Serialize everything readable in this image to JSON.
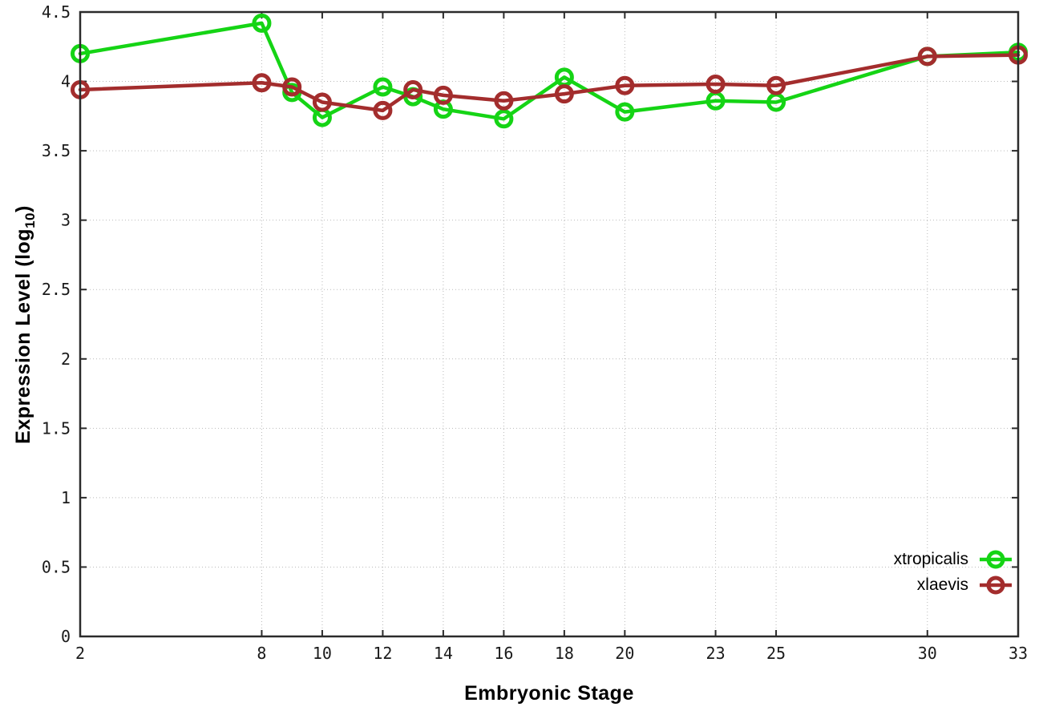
{
  "chart_data": {
    "type": "line",
    "title": "",
    "xlabel": "Embryonic Stage",
    "ylabel": "Expression Level (log10)",
    "ylabel_parts": {
      "base": "Expression Level (log",
      "sub": "10",
      "close": ")"
    },
    "xlim": [
      2,
      33
    ],
    "ylim": [
      0,
      4.5
    ],
    "grid": true,
    "legend_position": "inside-bottom-right",
    "x": [
      2,
      8,
      9,
      10,
      12,
      13,
      14,
      16,
      18,
      20,
      23,
      25,
      30,
      33
    ],
    "xticks": {
      "values": [
        2,
        8,
        10,
        12,
        14,
        16,
        18,
        20,
        23,
        25,
        30,
        33
      ],
      "labels": [
        "2",
        "8",
        "10",
        "12",
        "14",
        "16",
        "18",
        "20",
        "23",
        "25",
        "30",
        "33"
      ]
    },
    "yticks": {
      "values": [
        0,
        0.5,
        1,
        1.5,
        2,
        2.5,
        3,
        3.5,
        4,
        4.5
      ],
      "labels": [
        "0",
        "0.5",
        "1",
        "1.5",
        "2",
        "2.5",
        "3",
        "3.5",
        "4",
        "4.5"
      ]
    },
    "series": [
      {
        "name": "xtropicalis",
        "color": "#15d415",
        "marker": "open-circle",
        "values": [
          4.2,
          4.42,
          3.92,
          3.74,
          3.96,
          3.89,
          3.8,
          3.73,
          4.03,
          3.78,
          3.86,
          3.85,
          4.18,
          4.21
        ]
      },
      {
        "name": "xlaevis",
        "color": "#a32d2d",
        "marker": "open-circle",
        "values": [
          3.94,
          3.99,
          3.96,
          3.85,
          3.79,
          3.94,
          3.9,
          3.86,
          3.91,
          3.97,
          3.98,
          3.97,
          4.18,
          4.19
        ]
      }
    ],
    "styles": {
      "grid_color": "#b9b9b9",
      "axis_color": "#2b2b2b",
      "text_color": "#1a1a1a"
    }
  }
}
